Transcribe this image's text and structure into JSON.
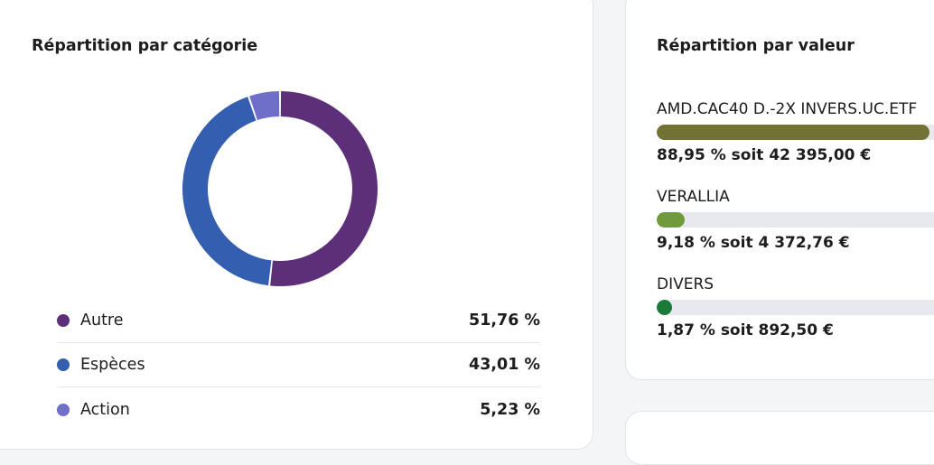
{
  "category_card": {
    "title": "Répartition par catégorie",
    "items": [
      {
        "label": "Autre",
        "value_text": "51,76 %",
        "value": 51.76,
        "color": "#5c2f78"
      },
      {
        "label": "Espèces",
        "value_text": "43,01 %",
        "value": 43.01,
        "color": "#345eaf"
      },
      {
        "label": "Action",
        "value_text": "5,23 %",
        "value": 5.23,
        "color": "#6f6ec8"
      }
    ]
  },
  "value_card": {
    "title": "Répartition par valeur",
    "items": [
      {
        "name": "AMD.CAC40 D.-2X INVERS.UC.ETF",
        "share_text": "88,95 % soit 42 395,00 €",
        "share": 88.95,
        "color": "#727234"
      },
      {
        "name": "VERALLIA",
        "share_text": "9,18 % soit 4 372,76 €",
        "share": 9.18,
        "color": "#6f9b3b"
      },
      {
        "name": "DIVERS",
        "share_text": "1,87 % soit 892,50 €",
        "share": 1.87,
        "color": "#1a7a3a"
      }
    ]
  }
}
